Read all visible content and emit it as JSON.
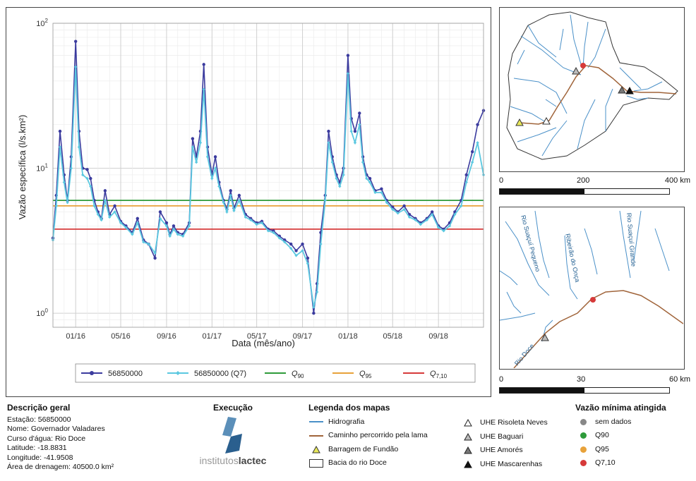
{
  "chart_data": {
    "type": "line",
    "xlabel": "Data (mês/ano)",
    "ylabel": "Vazão específica (l/s.km²)",
    "y_scale": "log",
    "ylim": [
      0.8,
      100
    ],
    "x_range": [
      "2015-11-01",
      "2018-12-31"
    ],
    "x_ticks": [
      {
        "label": "01/16",
        "date": "2016-01-01"
      },
      {
        "label": "05/16",
        "date": "2016-05-01"
      },
      {
        "label": "09/16",
        "date": "2016-09-01"
      },
      {
        "label": "01/17",
        "date": "2017-01-01"
      },
      {
        "label": "05/17",
        "date": "2017-05-01"
      },
      {
        "label": "09/17",
        "date": "2017-09-01"
      },
      {
        "label": "01/18",
        "date": "2018-01-01"
      },
      {
        "label": "05/18",
        "date": "2018-05-01"
      },
      {
        "label": "09/18",
        "date": "2018-09-01"
      }
    ],
    "y_ticks": [
      {
        "value": 1,
        "base": "10",
        "exp": "0"
      },
      {
        "value": 10,
        "base": "10",
        "exp": "1"
      },
      {
        "value": 100,
        "base": "10",
        "exp": "2"
      }
    ],
    "grid": true,
    "legend_position": "bottom",
    "series": [
      {
        "name": "56850000",
        "color": "#3b3b9e",
        "x": [
          "2015-11-01",
          "2015-11-10",
          "2015-11-20",
          "2015-12-01",
          "2015-12-10",
          "2015-12-20",
          "2016-01-01",
          "2016-01-10",
          "2016-01-20",
          "2016-02-01",
          "2016-02-10",
          "2016-02-20",
          "2016-03-01",
          "2016-03-10",
          "2016-03-20",
          "2016-04-01",
          "2016-04-15",
          "2016-05-01",
          "2016-05-15",
          "2016-06-01",
          "2016-06-15",
          "2016-07-01",
          "2016-07-15",
          "2016-08-01",
          "2016-08-15",
          "2016-09-01",
          "2016-09-10",
          "2016-09-20",
          "2016-10-01",
          "2016-10-15",
          "2016-11-01",
          "2016-11-10",
          "2016-11-20",
          "2016-12-01",
          "2016-12-10",
          "2016-12-20",
          "2017-01-01",
          "2017-01-10",
          "2017-01-20",
          "2017-02-01",
          "2017-02-10",
          "2017-02-20",
          "2017-03-01",
          "2017-03-15",
          "2017-04-01",
          "2017-04-15",
          "2017-05-01",
          "2017-05-15",
          "2017-06-01",
          "2017-06-15",
          "2017-07-01",
          "2017-07-15",
          "2017-08-01",
          "2017-08-15",
          "2017-09-01",
          "2017-09-15",
          "2017-10-01",
          "2017-10-10",
          "2017-10-20",
          "2017-11-01",
          "2017-11-10",
          "2017-11-20",
          "2017-12-01",
          "2017-12-10",
          "2017-12-20",
          "2018-01-01",
          "2018-01-10",
          "2018-01-20",
          "2018-02-01",
          "2018-02-10",
          "2018-02-20",
          "2018-03-01",
          "2018-03-15",
          "2018-04-01",
          "2018-04-15",
          "2018-05-01",
          "2018-05-15",
          "2018-06-01",
          "2018-06-15",
          "2018-07-01",
          "2018-07-15",
          "2018-08-01",
          "2018-08-15",
          "2018-09-01",
          "2018-09-15",
          "2018-10-01",
          "2018-10-15",
          "2018-11-01",
          "2018-11-15",
          "2018-12-01",
          "2018-12-15",
          "2018-12-31"
        ],
        "y": [
          3.3,
          6.5,
          18,
          9,
          6.0,
          12,
          75,
          18,
          10,
          9.8,
          8.5,
          6.0,
          5.0,
          4.5,
          7.0,
          4.8,
          5.5,
          4.3,
          4.0,
          3.6,
          4.5,
          3.2,
          3.0,
          2.4,
          5.0,
          4.2,
          3.5,
          4.0,
          3.6,
          3.5,
          4.2,
          16,
          12,
          18,
          52,
          14,
          9,
          12,
          8,
          6.0,
          5.2,
          7.0,
          5.3,
          6.5,
          4.8,
          4.5,
          4.2,
          4.3,
          3.8,
          3.7,
          3.4,
          3.2,
          3.0,
          2.7,
          3.0,
          2.4,
          1.0,
          1.6,
          3.6,
          6.5,
          18,
          12,
          9,
          8,
          10,
          60,
          22,
          18,
          24,
          12,
          9,
          8.5,
          7.0,
          7.2,
          6.0,
          5.4,
          5.0,
          5.5,
          4.8,
          4.5,
          4.2,
          4.5,
          5.0,
          4.0,
          3.8,
          4.2,
          5.0,
          6.0,
          9.0,
          13,
          20,
          25
        ]
      },
      {
        "name": "56850000 (Q7)",
        "color": "#5bc8e0",
        "x": [
          "2015-11-01",
          "2015-11-10",
          "2015-11-20",
          "2015-12-01",
          "2015-12-10",
          "2015-12-20",
          "2016-01-01",
          "2016-01-10",
          "2016-01-20",
          "2016-02-01",
          "2016-02-10",
          "2016-02-20",
          "2016-03-01",
          "2016-03-10",
          "2016-03-20",
          "2016-04-01",
          "2016-04-15",
          "2016-05-01",
          "2016-05-15",
          "2016-06-01",
          "2016-06-15",
          "2016-07-01",
          "2016-07-15",
          "2016-08-01",
          "2016-08-15",
          "2016-09-01",
          "2016-09-10",
          "2016-09-20",
          "2016-10-01",
          "2016-10-15",
          "2016-11-01",
          "2016-11-10",
          "2016-11-20",
          "2016-12-01",
          "2016-12-10",
          "2016-12-20",
          "2017-01-01",
          "2017-01-10",
          "2017-01-20",
          "2017-02-01",
          "2017-02-10",
          "2017-02-20",
          "2017-03-01",
          "2017-03-15",
          "2017-04-01",
          "2017-04-15",
          "2017-05-01",
          "2017-05-15",
          "2017-06-01",
          "2017-06-15",
          "2017-07-01",
          "2017-07-15",
          "2017-08-01",
          "2017-08-15",
          "2017-09-01",
          "2017-09-15",
          "2017-10-01",
          "2017-10-10",
          "2017-10-20",
          "2017-11-01",
          "2017-11-10",
          "2017-11-20",
          "2017-12-01",
          "2017-12-10",
          "2017-12-20",
          "2018-01-01",
          "2018-01-10",
          "2018-01-20",
          "2018-02-01",
          "2018-02-10",
          "2018-02-20",
          "2018-03-01",
          "2018-03-15",
          "2018-04-01",
          "2018-04-15",
          "2018-05-01",
          "2018-05-15",
          "2018-06-01",
          "2018-06-15",
          "2018-07-01",
          "2018-07-15",
          "2018-08-01",
          "2018-08-15",
          "2018-09-01",
          "2018-09-15",
          "2018-10-01",
          "2018-10-15",
          "2018-11-01",
          "2018-11-15",
          "2018-12-01",
          "2018-12-15",
          "2018-12-31"
        ],
        "y": [
          3.2,
          5.5,
          14,
          8,
          5.8,
          10,
          50,
          14,
          9,
          8.5,
          7.5,
          5.5,
          4.8,
          4.4,
          6.0,
          4.6,
          5.0,
          4.2,
          3.9,
          3.5,
          4.2,
          3.1,
          3.0,
          2.6,
          4.5,
          4.0,
          3.4,
          3.8,
          3.5,
          3.4,
          4.0,
          14,
          11,
          15,
          35,
          12,
          8.5,
          10,
          7.5,
          5.8,
          5.0,
          6.5,
          5.1,
          6.0,
          4.6,
          4.4,
          4.1,
          4.2,
          3.7,
          3.6,
          3.3,
          3.1,
          2.8,
          2.5,
          2.7,
          2.2,
          1.1,
          1.4,
          3.0,
          6.0,
          15,
          11,
          8.5,
          7.5,
          9.0,
          45,
          18,
          15,
          20,
          11,
          8.5,
          8.0,
          6.8,
          6.8,
          5.8,
          5.2,
          4.9,
          5.2,
          4.6,
          4.4,
          4.1,
          4.4,
          4.8,
          3.9,
          3.7,
          4.0,
          4.8,
          5.5,
          8.0,
          11,
          15,
          9
        ]
      }
    ],
    "thresholds": [
      {
        "name_base": "Q",
        "name_sub": "90",
        "value": 6.0,
        "color": "#2e9b3a"
      },
      {
        "name_base": "Q",
        "name_sub": "95",
        "value": 5.5,
        "color": "#e8a23a"
      },
      {
        "name_base": "Q",
        "name_sub": "7,10",
        "value": 3.8,
        "color": "#d63a3a"
      }
    ]
  },
  "map_top": {
    "scale_labels": [
      "0",
      "200",
      "400 km"
    ],
    "colors": {
      "river": "#4a90c8",
      "mud_path": "#a0643a",
      "boundary": "#333333"
    }
  },
  "map_bottom": {
    "scale_labels": [
      "0",
      "30",
      "60 km"
    ],
    "river_labels": [
      "Rio Suaçuí Pequeno",
      "Ribeirão do Onça",
      "Rio Suaçuí Grande",
      "Rio Doce"
    ]
  },
  "description": {
    "title": "Descrição geral",
    "lines": [
      "Estação: 56850000",
      "Nome: Governador Valadares",
      "Curso d'água: Rio Doce",
      "Latitude: -18.8831",
      "Longitude: -41.9508",
      "Área de drenagem: 40500.0 km²"
    ]
  },
  "execution": {
    "title": "Execução",
    "logo_text_light": "institutos",
    "logo_text_bold": "lactec"
  },
  "map_legend": {
    "title": "Legenda dos mapas",
    "items": [
      {
        "label": "Hidrografia",
        "symbol": "river-line-icon"
      },
      {
        "label": "Caminho percorrido pela lama",
        "symbol": "mud-line-icon"
      },
      {
        "label": "Barragem de Fundão",
        "symbol": "yellow-triangle-icon"
      },
      {
        "label": "Bacia do rio Doce",
        "symbol": "basin-rect-icon"
      }
    ],
    "dams": [
      {
        "label": "UHE Risoleta Neves",
        "fill": "#ffffff"
      },
      {
        "label": "UHE Baguari",
        "fill": "#bbbbbb"
      },
      {
        "label": "UHE Amorés",
        "fill": "#777777"
      },
      {
        "label": "UHE Mascarenhas",
        "fill": "#111111"
      }
    ]
  },
  "min_flow": {
    "title": "Vazão mínima atingida",
    "items": [
      {
        "label": "sem dados",
        "color": "#888888"
      },
      {
        "label": "Q90",
        "color": "#2e9b3a"
      },
      {
        "label": "Q95",
        "color": "#e8a23a"
      },
      {
        "label": "Q7,10",
        "color": "#d63a3a"
      }
    ]
  }
}
